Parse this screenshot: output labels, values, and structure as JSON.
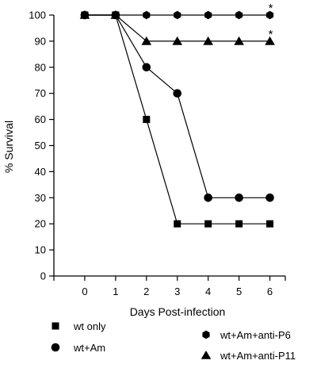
{
  "chart_data": {
    "type": "line",
    "xlabel": "Days Post-infection",
    "ylabel": "% Survival",
    "x": [
      0,
      1,
      2,
      3,
      4,
      5,
      6
    ],
    "xlim": [
      -1,
      6.5
    ],
    "ylim": [
      0,
      100
    ],
    "yticks": [
      0,
      10,
      20,
      30,
      40,
      50,
      60,
      70,
      80,
      90,
      100
    ],
    "grid": false,
    "legend_position": "bottom",
    "series": [
      {
        "name": "wt only",
        "marker": "square",
        "values": [
          100,
          100,
          60,
          20,
          20,
          20,
          20
        ]
      },
      {
        "name": "wt+Am",
        "marker": "circle",
        "values": [
          100,
          100,
          80,
          70,
          30,
          30,
          30
        ]
      },
      {
        "name": "wt+Am+anti-P6",
        "marker": "hexagon",
        "values": [
          100,
          100,
          100,
          100,
          100,
          100,
          100
        ]
      },
      {
        "name": "wt+Am+anti-P11",
        "marker": "triangle",
        "values": [
          100,
          100,
          90,
          90,
          90,
          90,
          90
        ]
      }
    ],
    "annotations": [
      {
        "text": "*",
        "series": "wt+Am+anti-P6",
        "x": 6
      },
      {
        "text": "*",
        "series": "wt+Am+anti-P11",
        "x": 6
      }
    ]
  }
}
